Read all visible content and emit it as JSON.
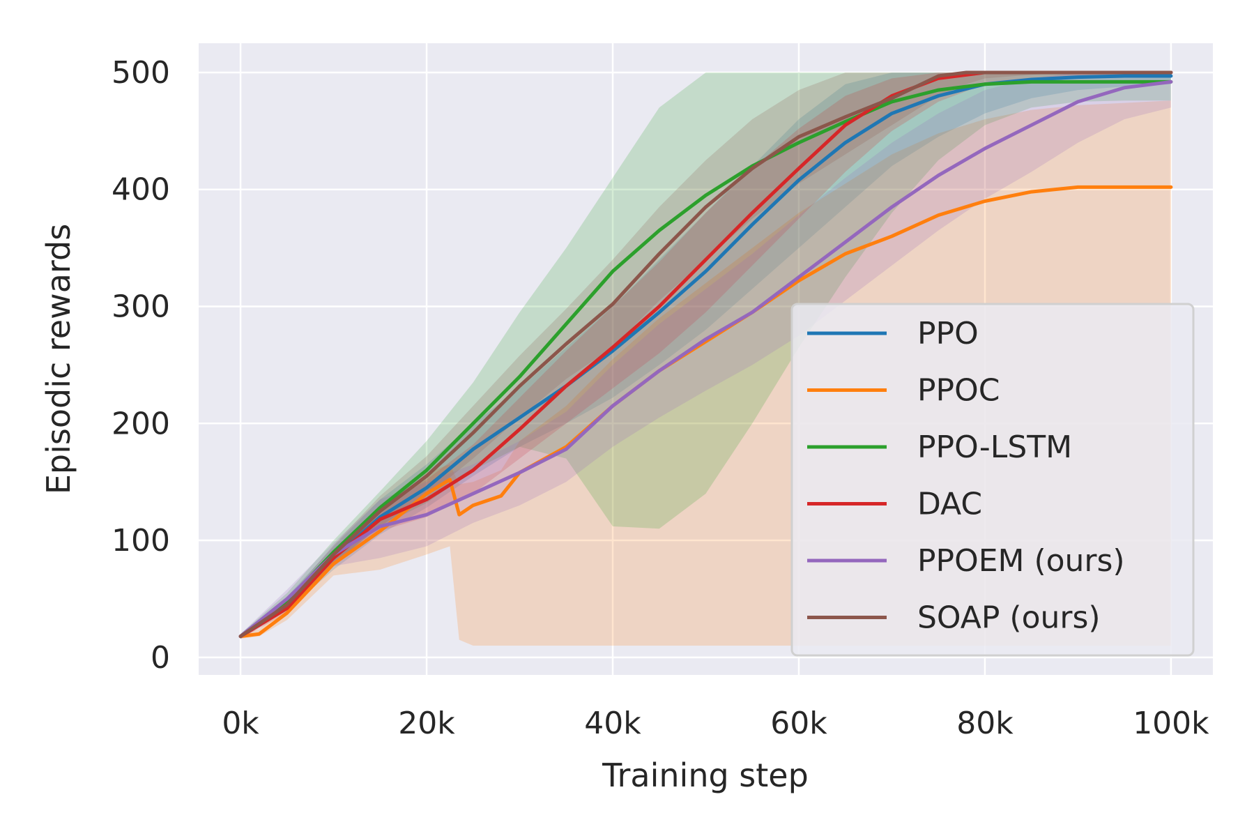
{
  "chart_data": {
    "type": "line",
    "title": "",
    "xlabel": "Training step",
    "ylabel": "Episodic rewards",
    "xlim": [
      -4500,
      104500
    ],
    "ylim": [
      -15,
      525
    ],
    "x_ticks": [
      0,
      20000,
      40000,
      60000,
      80000,
      100000
    ],
    "x_tick_labels": [
      "0k",
      "20k",
      "40k",
      "60k",
      "80k",
      "100k"
    ],
    "y_ticks": [
      0,
      100,
      200,
      300,
      400,
      500
    ],
    "y_tick_labels": [
      "0",
      "100",
      "200",
      "300",
      "400",
      "500"
    ],
    "grid": true,
    "legend_position": "lower-right",
    "series": [
      {
        "name": "PPO",
        "color": "#1f77b4",
        "x": [
          0,
          5000,
          10000,
          15000,
          20000,
          25000,
          30000,
          35000,
          40000,
          45000,
          50000,
          55000,
          60000,
          65000,
          70000,
          75000,
          80000,
          85000,
          90000,
          95000,
          100000
        ],
        "y": [
          18,
          45,
          85,
          120,
          145,
          178,
          205,
          232,
          262,
          295,
          330,
          370,
          408,
          440,
          465,
          480,
          490,
          494,
          496,
          497,
          497
        ],
        "lower": [
          16,
          40,
          75,
          105,
          128,
          155,
          180,
          200,
          222,
          250,
          280,
          315,
          350,
          385,
          420,
          445,
          465,
          478,
          485,
          488,
          490
        ],
        "upper": [
          20,
          52,
          95,
          135,
          165,
          200,
          230,
          265,
          300,
          340,
          380,
          420,
          460,
          490,
          500,
          500,
          500,
          500,
          500,
          500,
          500
        ]
      },
      {
        "name": "PPOC",
        "color": "#ff7f0e",
        "x": [
          0,
          2000,
          5000,
          10000,
          15000,
          20000,
          22500,
          23500,
          25000,
          28000,
          30000,
          35000,
          40000,
          45000,
          50000,
          55000,
          60000,
          65000,
          70000,
          75000,
          80000,
          85000,
          90000,
          95000,
          100000
        ],
        "y": [
          18,
          20,
          38,
          80,
          108,
          140,
          152,
          122,
          130,
          138,
          158,
          180,
          215,
          245,
          270,
          295,
          322,
          345,
          360,
          378,
          390,
          398,
          402,
          402,
          402
        ],
        "lower": [
          16,
          18,
          32,
          70,
          75,
          88,
          95,
          15,
          10,
          10,
          10,
          10,
          10,
          10,
          10,
          10,
          10,
          10,
          10,
          10,
          10,
          10,
          10,
          10,
          10
        ],
        "upper": [
          20,
          24,
          46,
          90,
          122,
          158,
          165,
          148,
          150,
          160,
          185,
          215,
          255,
          290,
          320,
          350,
          380,
          405,
          430,
          448,
          460,
          468,
          472,
          474,
          476
        ]
      },
      {
        "name": "PPO-LSTM",
        "color": "#2ca02c",
        "x": [
          0,
          5000,
          10000,
          15000,
          20000,
          25000,
          30000,
          35000,
          40000,
          45000,
          50000,
          55000,
          60000,
          65000,
          70000,
          75000,
          80000,
          85000,
          90000,
          95000,
          100000
        ],
        "y": [
          18,
          48,
          90,
          128,
          160,
          200,
          240,
          285,
          330,
          365,
          395,
          420,
          440,
          458,
          475,
          485,
          490,
          492,
          492,
          492,
          492
        ],
        "lower": [
          16,
          42,
          80,
          112,
          132,
          160,
          180,
          170,
          112,
          110,
          140,
          200,
          265,
          325,
          380,
          425,
          455,
          470,
          475,
          476,
          476
        ],
        "upper": [
          20,
          55,
          100,
          142,
          185,
          235,
          295,
          350,
          410,
          470,
          500,
          500,
          500,
          500,
          500,
          500,
          500,
          500,
          500,
          500,
          500
        ]
      },
      {
        "name": "DAC",
        "color": "#d62728",
        "x": [
          0,
          5000,
          10000,
          15000,
          20000,
          25000,
          30000,
          35000,
          40000,
          45000,
          50000,
          55000,
          60000,
          65000,
          70000,
          75000,
          80000,
          85000,
          90000,
          95000,
          100000
        ],
        "y": [
          18,
          42,
          85,
          118,
          135,
          160,
          195,
          232,
          265,
          300,
          340,
          380,
          418,
          455,
          480,
          495,
          500,
          500,
          500,
          500,
          500
        ],
        "lower": [
          16,
          38,
          78,
          108,
          120,
          140,
          170,
          200,
          230,
          260,
          295,
          335,
          375,
          415,
          450,
          475,
          490,
          495,
          497,
          498,
          498
        ],
        "upper": [
          20,
          48,
          92,
          130,
          152,
          182,
          222,
          262,
          300,
          338,
          380,
          418,
          452,
          480,
          495,
          500,
          500,
          500,
          500,
          500,
          500
        ]
      },
      {
        "name": "PPOEM (ours)",
        "color": "#9467bd",
        "x": [
          0,
          5000,
          10000,
          15000,
          20000,
          25000,
          30000,
          35000,
          40000,
          45000,
          50000,
          55000,
          60000,
          65000,
          70000,
          75000,
          80000,
          85000,
          90000,
          95000,
          100000
        ],
        "y": [
          18,
          50,
          88,
          112,
          122,
          140,
          158,
          178,
          215,
          245,
          272,
          295,
          325,
          355,
          385,
          412,
          435,
          455,
          475,
          487,
          492
        ],
        "lower": [
          16,
          42,
          78,
          85,
          95,
          115,
          130,
          150,
          180,
          205,
          228,
          250,
          275,
          305,
          335,
          365,
          392,
          415,
          440,
          460,
          470
        ],
        "upper": [
          20,
          58,
          98,
          135,
          150,
          165,
          185,
          210,
          250,
          285,
          315,
          345,
          378,
          410,
          440,
          465,
          485,
          495,
          500,
          500,
          500
        ]
      },
      {
        "name": "SOAP (ours)",
        "color": "#8c564b",
        "x": [
          0,
          5000,
          10000,
          15000,
          20000,
          25000,
          30000,
          35000,
          40000,
          45000,
          50000,
          55000,
          60000,
          65000,
          70000,
          75000,
          78000,
          80000,
          85000,
          90000,
          95000,
          100000
        ],
        "y": [
          18,
          45,
          88,
          125,
          155,
          192,
          232,
          268,
          302,
          345,
          385,
          418,
          445,
          462,
          478,
          497,
          500,
          500,
          500,
          500,
          500,
          500
        ],
        "lower": [
          16,
          40,
          80,
          112,
          138,
          170,
          205,
          238,
          265,
          305,
          340,
          375,
          405,
          430,
          455,
          480,
          490,
          495,
          498,
          500,
          500,
          500
        ],
        "upper": [
          20,
          50,
          96,
          138,
          172,
          215,
          258,
          298,
          340,
          385,
          425,
          460,
          485,
          500,
          500,
          500,
          500,
          500,
          500,
          500,
          500,
          500
        ]
      }
    ]
  }
}
